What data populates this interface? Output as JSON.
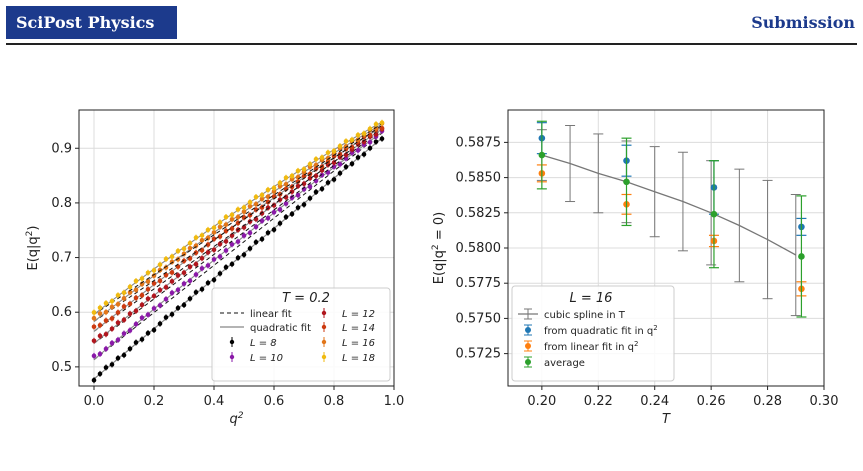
{
  "header": {
    "journal": "SciPost Physics",
    "right_label": "Submission"
  },
  "chart_data": [
    {
      "type": "scatter",
      "xlabel": "q²",
      "ylabel": "E(q|q²)",
      "xlim": [
        -0.05,
        1.0
      ],
      "ylim": [
        0.465,
        0.97
      ],
      "xticks": [
        "0.0",
        "0.2",
        "0.4",
        "0.6",
        "0.8",
        "1.0"
      ],
      "yticks": [
        "0.5",
        "0.6",
        "0.7",
        "0.8",
        "0.9"
      ],
      "grid": true,
      "legend_title": "T = 0.2",
      "legend_position": "lower-right",
      "legend": [
        "linear fit",
        "quadratic fit",
        "L = 8",
        "L = 10",
        "L = 12",
        "L = 14",
        "L = 16",
        "L = 18"
      ],
      "series": [
        {
          "name": "L = 8",
          "color": "#000000",
          "y0": 0.478,
          "y1": 0.937,
          "lift": 0.0
        },
        {
          "name": "L = 10",
          "color": "#8a1aa8",
          "y0": 0.513,
          "y1": 0.945,
          "lift": 0.01
        },
        {
          "name": "L = 12",
          "color": "#b0161e",
          "y0": 0.543,
          "y1": 0.95,
          "lift": 0.01
        },
        {
          "name": "L = 14",
          "color": "#cc3a10",
          "y0": 0.565,
          "y1": 0.953,
          "lift": 0.012
        },
        {
          "name": "L = 16",
          "color": "#e2761a",
          "y0": 0.583,
          "y1": 0.957,
          "lift": 0.014
        },
        {
          "name": "L = 18",
          "color": "#f0ba10",
          "y0": 0.596,
          "y1": 0.96,
          "lift": 0.016
        }
      ]
    },
    {
      "type": "line",
      "xlabel": "T",
      "ylabel": "E(q|q² = 0)",
      "xlim": [
        0.188,
        0.3
      ],
      "ylim": [
        0.5702,
        0.5898
      ],
      "xticks": [
        "0.20",
        "0.22",
        "0.24",
        "0.26",
        "0.28",
        "0.30"
      ],
      "yticks": [
        "0.5725",
        "0.5750",
        "0.5775",
        "0.5800",
        "0.5825",
        "0.5850",
        "0.5875"
      ],
      "grid": true,
      "legend_title": "L = 16",
      "legend_position": "lower-left",
      "legend": [
        "cubic spline in T",
        "from quadratic fit in q²",
        "from linear fit in q²",
        "average"
      ],
      "spline": {
        "x": [
          0.2,
          0.21,
          0.22,
          0.23,
          0.24,
          0.25,
          0.26,
          0.27,
          0.28,
          0.29
        ],
        "y": [
          0.5866,
          0.586,
          0.5853,
          0.5847,
          0.584,
          0.5833,
          0.5825,
          0.5816,
          0.5806,
          0.5795
        ],
        "err": [
          0.0018,
          0.0027,
          0.0028,
          0.0029,
          0.0032,
          0.0035,
          0.0037,
          0.004,
          0.0042,
          0.0043
        ]
      },
      "series": [
        {
          "name": "from quadratic fit in q²",
          "color": "#1f77b4",
          "x": [
            0.2,
            0.23,
            0.261,
            0.292
          ],
          "y": [
            0.5878,
            0.5862,
            0.5843,
            0.5815
          ],
          "err": [
            0.0011,
            0.0011,
            0.0019,
            0.0006
          ]
        },
        {
          "name": "from linear fit in q²",
          "color": "#ff7f0e",
          "x": [
            0.2,
            0.23,
            0.261,
            0.292
          ],
          "y": [
            0.5853,
            0.5831,
            0.5805,
            0.5771
          ],
          "err": [
            0.0006,
            0.0007,
            0.0004,
            0.0005
          ]
        },
        {
          "name": "average",
          "color": "#2ca02c",
          "x": [
            0.2,
            0.23,
            0.261,
            0.292
          ],
          "y": [
            0.5866,
            0.5847,
            0.5824,
            0.5794
          ],
          "err": [
            0.0024,
            0.0031,
            0.0038,
            0.0043
          ]
        }
      ]
    }
  ]
}
